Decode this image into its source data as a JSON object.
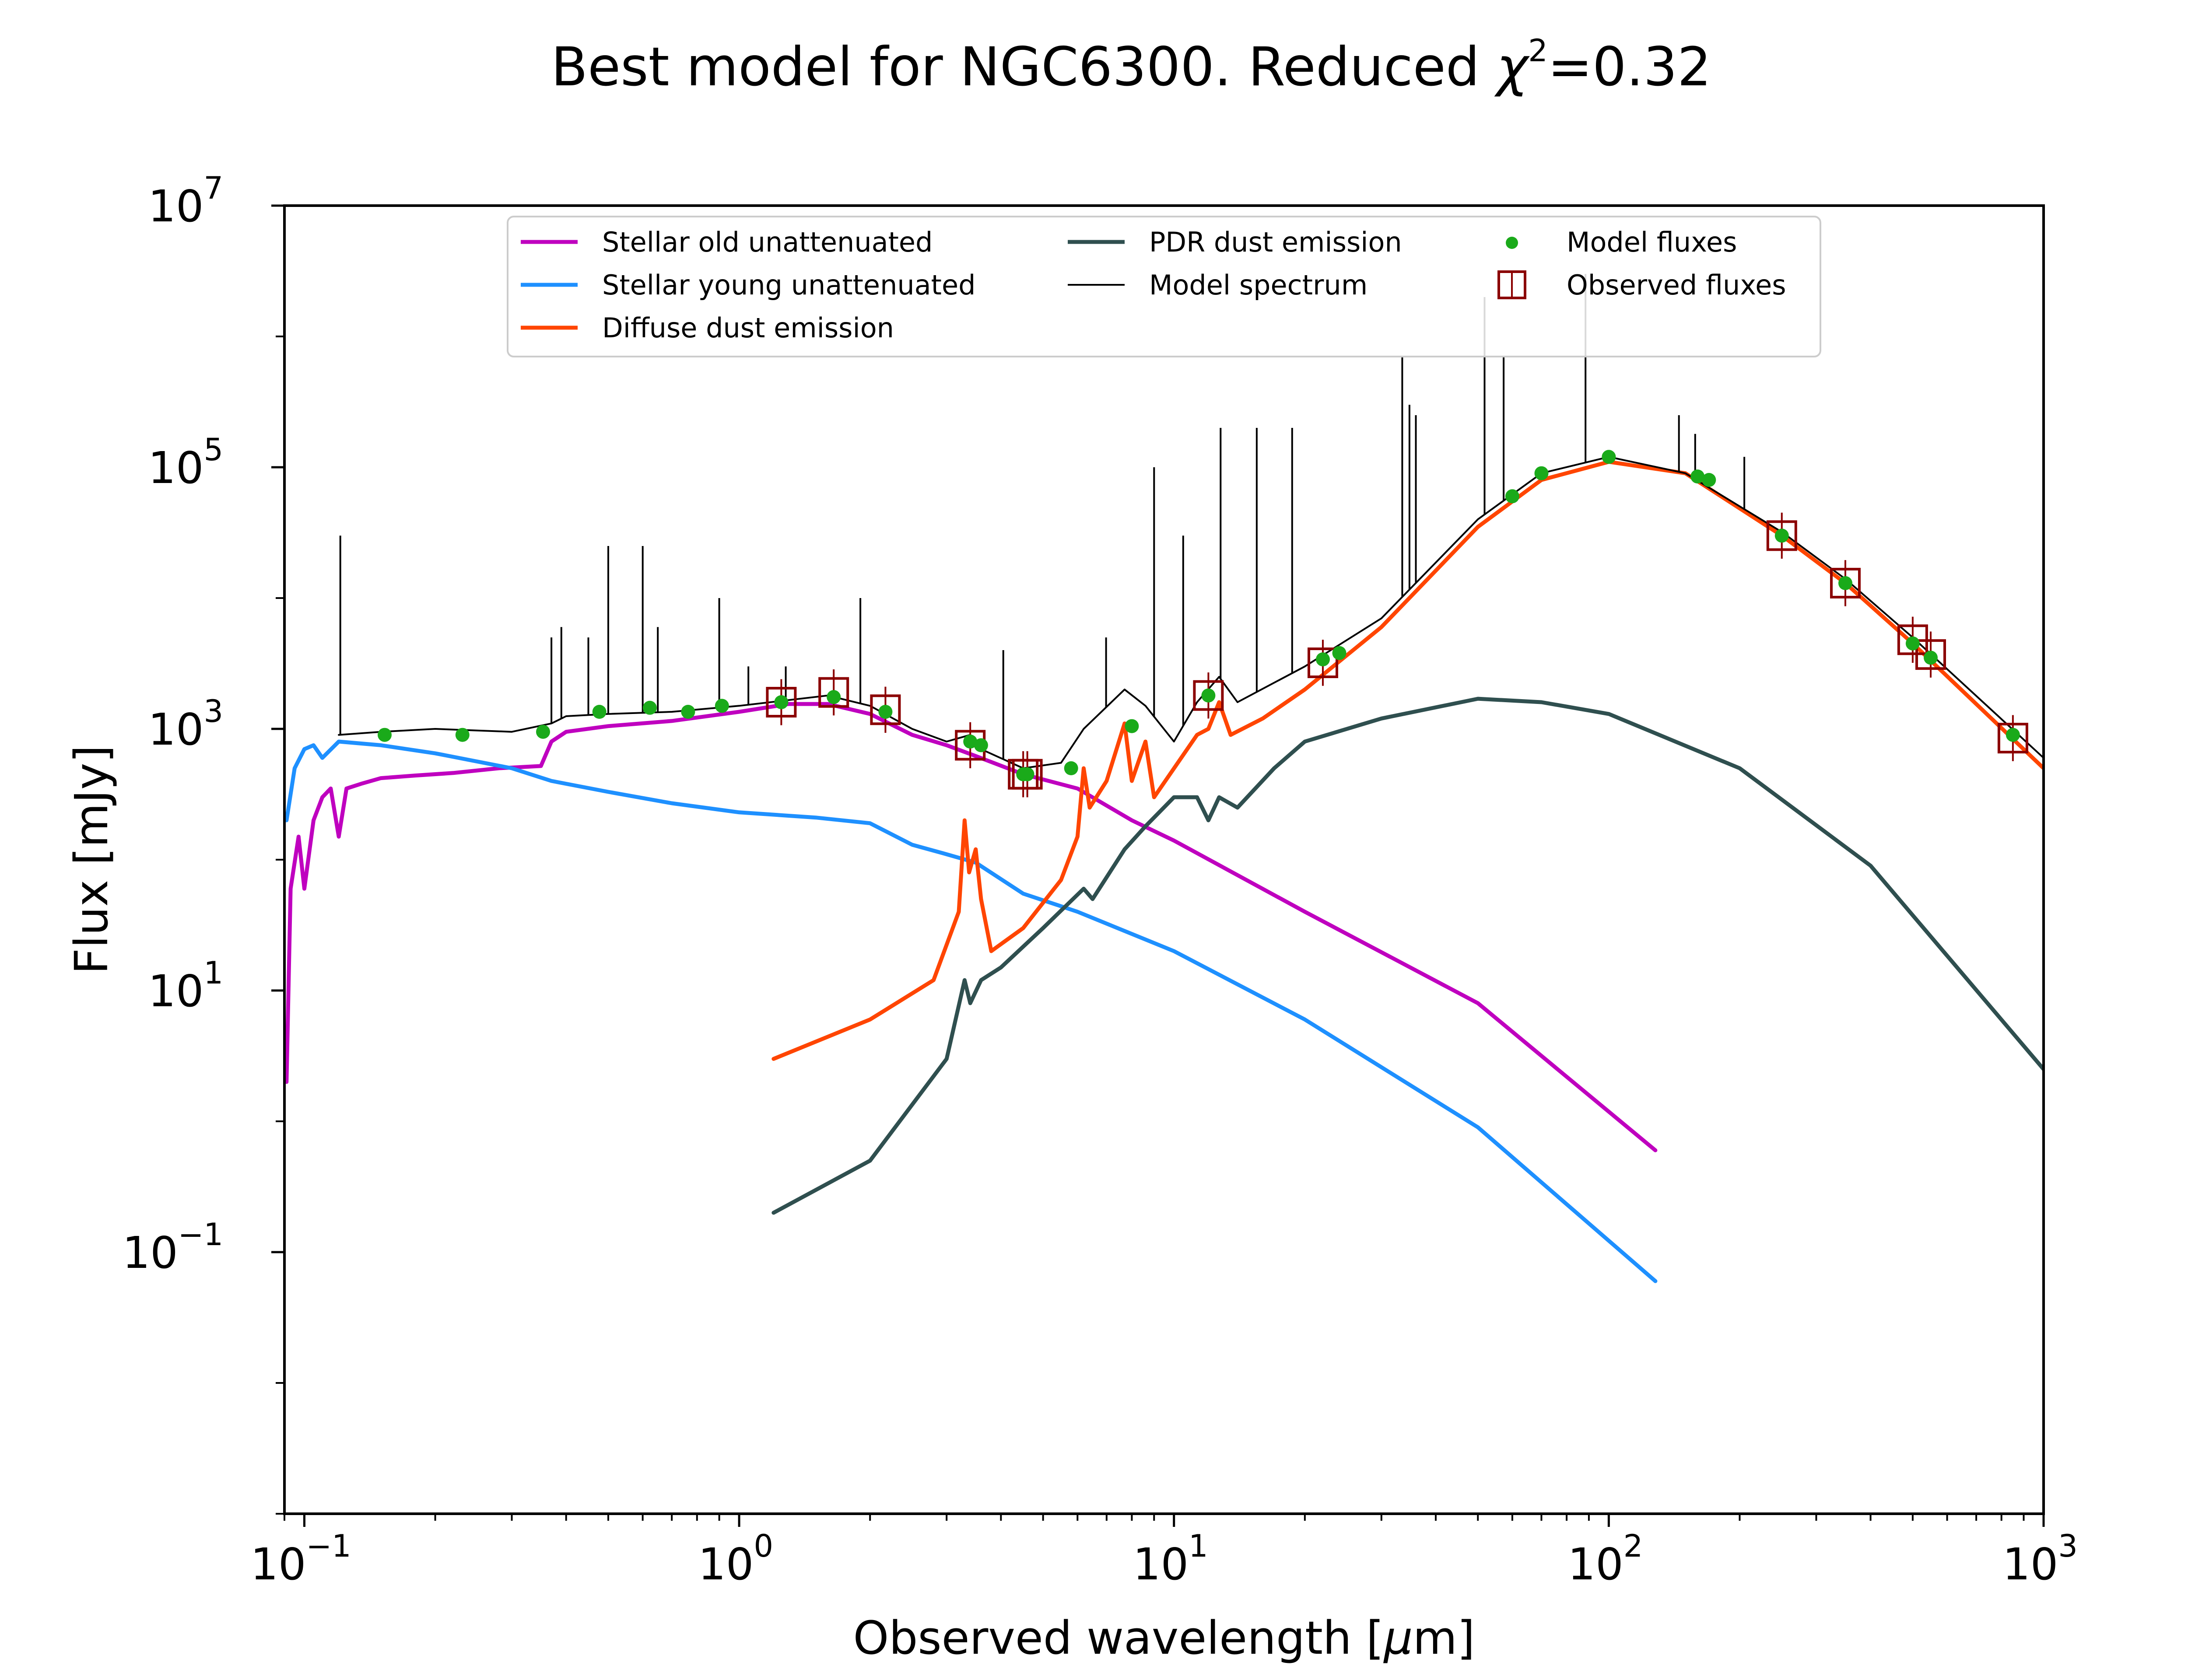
{
  "chart_data": {
    "type": "line",
    "title": "Best model for NGC6300. Reduced χ²=0.32",
    "title_parts": {
      "prefix": "Best model for NGC6300. Reduced ",
      "chi": "χ",
      "chi_sup": "2",
      "suffix": "=0.32"
    },
    "xlabel": "Observed wavelength [μm]",
    "xlabel_parts": {
      "prefix": "Observed wavelength [",
      "mu": "μ",
      "suffix": "m]"
    },
    "ylabel": "Flux [mJy]",
    "xscale": "log",
    "yscale": "log",
    "xlim": [
      0.09,
      1000
    ],
    "ylim": [
      0.001,
      10000000
    ],
    "x_ticks": [
      {
        "value": 0.1,
        "base": "10",
        "exp": "−1"
      },
      {
        "value": 1,
        "base": "10",
        "exp": "0"
      },
      {
        "value": 10,
        "base": "10",
        "exp": "1"
      },
      {
        "value": 100,
        "base": "10",
        "exp": "2"
      },
      {
        "value": 1000,
        "base": "10",
        "exp": "3"
      }
    ],
    "y_ticks": [
      {
        "value": 0.1,
        "base": "10",
        "exp": "−1"
      },
      {
        "value": 10,
        "base": "10",
        "exp": "1"
      },
      {
        "value": 1000,
        "base": "10",
        "exp": "3"
      },
      {
        "value": 100000,
        "base": "10",
        "exp": "5"
      },
      {
        "value": 10000000,
        "base": "10",
        "exp": "7"
      }
    ],
    "grid": false,
    "legend": {
      "placement": "top-center",
      "columns": 3
    },
    "series": [
      {
        "name": "Stellar old unattenuated",
        "color": "#bf00bf",
        "kind": "line",
        "points": [
          [
            0.091,
            2
          ],
          [
            0.093,
            60
          ],
          [
            0.097,
            150
          ],
          [
            0.1,
            60
          ],
          [
            0.105,
            200
          ],
          [
            0.11,
            300
          ],
          [
            0.115,
            350
          ],
          [
            0.12,
            150
          ],
          [
            0.125,
            350
          ],
          [
            0.135,
            380
          ],
          [
            0.15,
            420
          ],
          [
            0.18,
            440
          ],
          [
            0.22,
            460
          ],
          [
            0.28,
            500
          ],
          [
            0.35,
            520
          ],
          [
            0.37,
            800
          ],
          [
            0.4,
            950
          ],
          [
            0.5,
            1050
          ],
          [
            0.7,
            1150
          ],
          [
            1.0,
            1350
          ],
          [
            1.3,
            1550
          ],
          [
            1.6,
            1550
          ],
          [
            2.0,
            1300
          ],
          [
            2.5,
            900
          ],
          [
            3.0,
            750
          ],
          [
            3.5,
            620
          ],
          [
            4.5,
            450
          ],
          [
            6,
            350
          ],
          [
            8,
            200
          ],
          [
            10,
            140
          ],
          [
            20,
            40
          ],
          [
            50,
            8
          ],
          [
            128,
            0.6
          ]
        ]
      },
      {
        "name": "Stellar young unattenuated",
        "color": "#1e90ff",
        "kind": "line",
        "points": [
          [
            0.091,
            200
          ],
          [
            0.095,
            500
          ],
          [
            0.1,
            700
          ],
          [
            0.105,
            750
          ],
          [
            0.11,
            600
          ],
          [
            0.12,
            800
          ],
          [
            0.15,
            750
          ],
          [
            0.2,
            650
          ],
          [
            0.3,
            500
          ],
          [
            0.37,
            400
          ],
          [
            0.5,
            330
          ],
          [
            0.7,
            270
          ],
          [
            1.0,
            230
          ],
          [
            1.5,
            210
          ],
          [
            2.0,
            190
          ],
          [
            2.5,
            130
          ],
          [
            3.0,
            110
          ],
          [
            3.5,
            95
          ],
          [
            4.5,
            55
          ],
          [
            6,
            40
          ],
          [
            10,
            20
          ],
          [
            20,
            6
          ],
          [
            50,
            0.9
          ],
          [
            128,
            0.06
          ]
        ]
      },
      {
        "name": "Diffuse dust emission",
        "color": "#ff4500",
        "kind": "line",
        "points": [
          [
            1.2,
            3
          ],
          [
            2.0,
            6
          ],
          [
            2.8,
            12
          ],
          [
            3.2,
            40
          ],
          [
            3.3,
            200
          ],
          [
            3.38,
            80
          ],
          [
            3.5,
            120
          ],
          [
            3.6,
            50
          ],
          [
            3.8,
            20
          ],
          [
            4.5,
            30
          ],
          [
            5.5,
            70
          ],
          [
            6.0,
            150
          ],
          [
            6.2,
            500
          ],
          [
            6.4,
            250
          ],
          [
            7.0,
            400
          ],
          [
            7.7,
            1100
          ],
          [
            8.0,
            400
          ],
          [
            8.6,
            800
          ],
          [
            9.0,
            300
          ],
          [
            11.3,
            900
          ],
          [
            12.0,
            1000
          ],
          [
            12.7,
            1600
          ],
          [
            13.5,
            900
          ],
          [
            16,
            1200
          ],
          [
            20,
            2000
          ],
          [
            30,
            6000
          ],
          [
            50,
            35000
          ],
          [
            70,
            80000
          ],
          [
            100,
            110000
          ],
          [
            150,
            90000
          ],
          [
            250,
            30000
          ],
          [
            350,
            13000
          ],
          [
            500,
            4500
          ],
          [
            1000,
            500
          ]
        ]
      },
      {
        "name": "PDR dust emission",
        "color": "#2f4f4f",
        "kind": "line",
        "points": [
          [
            1.2,
            0.2
          ],
          [
            2.0,
            0.5
          ],
          [
            3.0,
            3
          ],
          [
            3.3,
            12
          ],
          [
            3.4,
            8
          ],
          [
            3.6,
            12
          ],
          [
            4.0,
            15
          ],
          [
            5.0,
            30
          ],
          [
            6.2,
            60
          ],
          [
            6.5,
            50
          ],
          [
            7.7,
            120
          ],
          [
            8.6,
            180
          ],
          [
            10,
            300
          ],
          [
            11.3,
            300
          ],
          [
            12.0,
            200
          ],
          [
            12.7,
            300
          ],
          [
            14,
            250
          ],
          [
            17,
            500
          ],
          [
            20,
            800
          ],
          [
            30,
            1200
          ],
          [
            50,
            1700
          ],
          [
            70,
            1600
          ],
          [
            100,
            1300
          ],
          [
            200,
            500
          ],
          [
            400,
            90
          ],
          [
            1000,
            2.5
          ]
        ]
      },
      {
        "name": "Model spectrum",
        "color": "#000000",
        "kind": "line",
        "points": [
          [
            0.12,
            900
          ],
          [
            0.15,
            950
          ],
          [
            0.2,
            1000
          ],
          [
            0.3,
            950
          ],
          [
            0.37,
            1100
          ],
          [
            0.4,
            1250
          ],
          [
            0.5,
            1300
          ],
          [
            0.7,
            1350
          ],
          [
            1.0,
            1500
          ],
          [
            1.6,
            1800
          ],
          [
            2.0,
            1500
          ],
          [
            2.5,
            1000
          ],
          [
            3.0,
            800
          ],
          [
            3.4,
            900
          ],
          [
            3.6,
            700
          ],
          [
            4.5,
            500
          ],
          [
            5.5,
            550
          ],
          [
            6.2,
            1000
          ],
          [
            7.7,
            2000
          ],
          [
            8.6,
            1500
          ],
          [
            10,
            800
          ],
          [
            11.3,
            1600
          ],
          [
            12.7,
            2500
          ],
          [
            14,
            1600
          ],
          [
            20,
            3000
          ],
          [
            30,
            7000
          ],
          [
            50,
            40000
          ],
          [
            70,
            90000
          ],
          [
            100,
            120000
          ],
          [
            150,
            90000
          ],
          [
            250,
            32000
          ],
          [
            350,
            14000
          ],
          [
            500,
            5000
          ],
          [
            1000,
            600
          ]
        ]
      }
    ],
    "model_spectrum_lines": [
      [
        0.121,
        30000
      ],
      [
        0.37,
        5000
      ],
      [
        0.39,
        6000
      ],
      [
        0.45,
        5000
      ],
      [
        0.5,
        25000
      ],
      [
        0.6,
        25000
      ],
      [
        0.65,
        6000
      ],
      [
        0.9,
        10000
      ],
      [
        1.05,
        3000
      ],
      [
        1.28,
        3000
      ],
      [
        1.9,
        10000
      ],
      [
        4.05,
        4000
      ],
      [
        6.98,
        5000
      ],
      [
        9.0,
        100000
      ],
      [
        10.5,
        30000
      ],
      [
        12.8,
        200000
      ],
      [
        15.5,
        200000
      ],
      [
        18.7,
        200000
      ],
      [
        33.5,
        700000
      ],
      [
        34.8,
        300000
      ],
      [
        36,
        250000
      ],
      [
        51.8,
        2000000
      ],
      [
        57.3,
        700000
      ],
      [
        88.4,
        3000000
      ],
      [
        145,
        250000
      ],
      [
        158,
        180000
      ],
      [
        205,
        120000
      ]
    ],
    "model_fluxes": {
      "name": "Model fluxes",
      "color": "#1aaa1a",
      "x": [
        0.153,
        0.231,
        0.354,
        0.477,
        0.623,
        0.763,
        0.913,
        1.25,
        1.65,
        2.17,
        3.4,
        3.6,
        4.5,
        4.6,
        5.8,
        8.0,
        12,
        22,
        24,
        60,
        70,
        100,
        160,
        170,
        250,
        350,
        500,
        550,
        850
      ],
      "y": [
        900,
        900,
        950,
        1350,
        1450,
        1350,
        1500,
        1600,
        1750,
        1350,
        800,
        750,
        450,
        450,
        500,
        1050,
        1800,
        3400,
        3800,
        60000,
        90000,
        120000,
        85000,
        80000,
        30000,
        13000,
        4500,
        3500,
        900
      ]
    },
    "observed_fluxes": {
      "name": "Observed fluxes",
      "color": "#8b0000",
      "x": [
        1.25,
        1.65,
        2.17,
        3.4,
        4.5,
        4.6,
        12,
        22,
        250,
        350,
        500,
        550,
        850
      ],
      "y": [
        1600,
        1900,
        1400,
        750,
        450,
        450,
        1800,
        3200,
        30000,
        13000,
        4800,
        3700,
        850
      ]
    }
  }
}
